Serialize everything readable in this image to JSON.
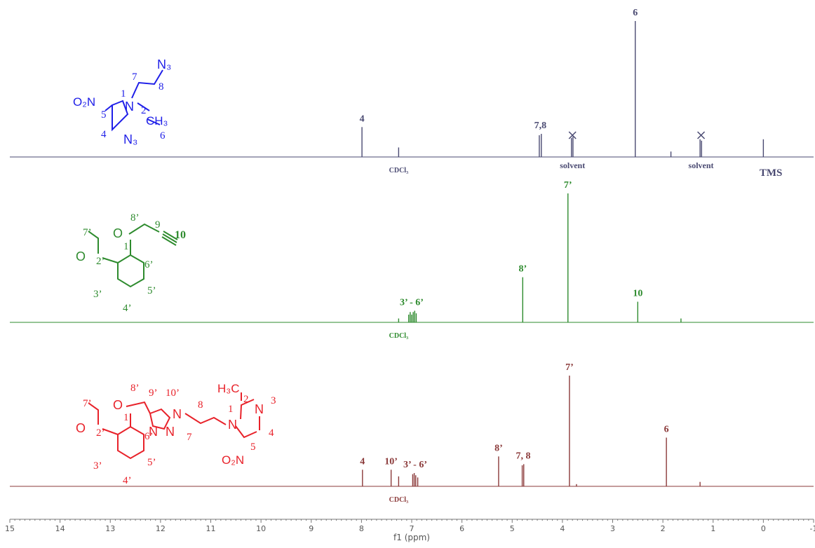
{
  "chart_data": {
    "type": "line",
    "title": "",
    "xlabel": "f1 (ppm)",
    "ylabel": "",
    "xlim": [
      15,
      -1
    ],
    "x_reversed": true,
    "grid": false,
    "tick_labels": [
      "15",
      "14",
      "13",
      "12",
      "11",
      "10",
      "9",
      "8",
      "7",
      "6",
      "5",
      "4",
      "3",
      "2",
      "1",
      "0",
      "-1"
    ],
    "series": [
      {
        "name": "",
        "color": "#4a4a72",
        "peaks": [
          {
            "ppm": 7.99,
            "height": 0.22
          },
          {
            "ppm": 7.26,
            "height": 0.07
          },
          {
            "ppm": 4.46,
            "height": 0.16
          },
          {
            "ppm": 4.42,
            "height": 0.17
          },
          {
            "ppm": 3.82,
            "height": 0.14
          },
          {
            "ppm": 3.79,
            "height": 0.15
          },
          {
            "ppm": 2.55,
            "height": 1.0
          },
          {
            "ppm": 1.84,
            "height": 0.04
          },
          {
            "ppm": 1.26,
            "height": 0.13
          },
          {
            "ppm": 1.23,
            "height": 0.12
          },
          {
            "ppm": 0.0,
            "height": 0.13
          }
        ],
        "annotations": [
          {
            "text": "4",
            "ppm": 7.99
          },
          {
            "text": "7,8",
            "ppm": 4.44
          },
          {
            "text": "6",
            "ppm": 2.55
          },
          {
            "text": "solvent",
            "ppm": 3.8
          },
          {
            "text": "solvent",
            "ppm": 1.24
          },
          {
            "text": "TMS",
            "ppm": -0.15
          },
          {
            "text": "CDCl₃",
            "ppm": 7.26
          }
        ]
      },
      {
        "name": "",
        "color": "#2e8b2e",
        "peaks": [
          {
            "ppm": 7.26,
            "height": 0.03
          },
          {
            "ppm": 7.06,
            "height": 0.06
          },
          {
            "ppm": 7.03,
            "height": 0.08
          },
          {
            "ppm": 7.0,
            "height": 0.06
          },
          {
            "ppm": 6.97,
            "height": 0.08
          },
          {
            "ppm": 6.94,
            "height": 0.09
          },
          {
            "ppm": 6.91,
            "height": 0.07
          },
          {
            "ppm": 4.79,
            "height": 0.35
          },
          {
            "ppm": 3.89,
            "height": 1.0
          },
          {
            "ppm": 2.5,
            "height": 0.16
          },
          {
            "ppm": 1.64,
            "height": 0.03
          }
        ],
        "annotations": [
          {
            "text": "3’ -  6’",
            "ppm": 7.0
          },
          {
            "text": "8’",
            "ppm": 4.79
          },
          {
            "text": "7’",
            "ppm": 3.89
          },
          {
            "text": "10",
            "ppm": 2.5
          },
          {
            "text": "CDCl₃",
            "ppm": 7.26
          }
        ]
      },
      {
        "name": "",
        "color": "#8b3a3a",
        "peaks": [
          {
            "ppm": 7.98,
            "height": 0.15
          },
          {
            "ppm": 7.41,
            "height": 0.15
          },
          {
            "ppm": 7.26,
            "height": 0.09
          },
          {
            "ppm": 6.98,
            "height": 0.11
          },
          {
            "ppm": 6.95,
            "height": 0.12
          },
          {
            "ppm": 6.92,
            "height": 0.1
          },
          {
            "ppm": 6.88,
            "height": 0.08
          },
          {
            "ppm": 5.27,
            "height": 0.27
          },
          {
            "ppm": 4.8,
            "height": 0.19
          },
          {
            "ppm": 4.77,
            "height": 0.2
          },
          {
            "ppm": 3.86,
            "height": 1.0
          },
          {
            "ppm": 3.72,
            "height": 0.02
          },
          {
            "ppm": 1.93,
            "height": 0.44
          },
          {
            "ppm": 1.26,
            "height": 0.04
          }
        ],
        "annotations": [
          {
            "text": "4",
            "ppm": 7.98
          },
          {
            "text": "10’",
            "ppm": 7.41
          },
          {
            "text": "3’ -  6’",
            "ppm": 6.93
          },
          {
            "text": "8’",
            "ppm": 5.27
          },
          {
            "text": "7, 8",
            "ppm": 4.78
          },
          {
            "text": "7’",
            "ppm": 3.86
          },
          {
            "text": "6",
            "ppm": 1.93
          },
          {
            "text": "CDCl₃",
            "ppm": 7.26
          }
        ]
      }
    ]
  },
  "structures": {
    "top": {
      "color": "#1f1fe8",
      "labels": {
        "no2": "O₂N",
        "n1": "N",
        "n3": "N₃",
        "n_azide": "N₃",
        "ch3": "CH₃",
        "pos1": "1",
        "pos2": "2",
        "pos4": "4",
        "pos5": "5",
        "pos6": "6",
        "pos7": "7",
        "pos8": "8"
      }
    },
    "middle": {
      "color": "#2e8b2e",
      "labels": {
        "o_ether": "O",
        "o_methoxy": "O",
        "p7": "7’",
        "p8": "8’",
        "p9": "9",
        "p10": "10",
        "p1": "1’",
        "p2": "2’",
        "p3": "3’",
        "p4": "4’",
        "p5": "5’",
        "p6": "6’"
      }
    },
    "bottom": {
      "color": "#e8222a",
      "labels": {
        "o_ether": "O",
        "o_methoxy": "O",
        "p7p": "7’",
        "p8p": "8’",
        "p9p": "9’",
        "p10p": "10’",
        "p1p": "1’",
        "p2p": "2’",
        "p3p": "3’",
        "p4p": "4’",
        "p5p": "5’",
        "p6p": "6’",
        "tri_n1": "N",
        "tri_n2": "N",
        "tri_n3": "N",
        "im_n1": "N",
        "im_n3": "N",
        "h3c": "H₃C",
        "no2": "O₂N",
        "p1": "1",
        "p2": "2",
        "p3": "3",
        "p4": "4",
        "p5": "5",
        "p7": "7",
        "p8": "8"
      }
    }
  }
}
